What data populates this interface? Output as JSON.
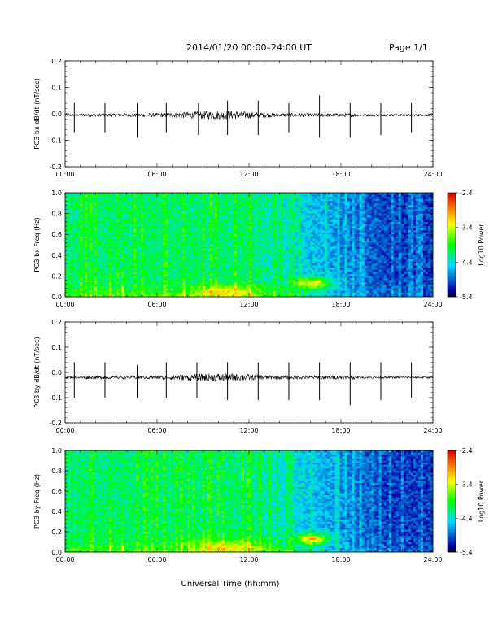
{
  "header": {
    "title": "2014/01/20  00:00–24:00 UT",
    "page": "Page 1/1"
  },
  "footer": {
    "xlabel": "Universal Time (hh:mm)"
  },
  "chart_data": [
    {
      "type": "line",
      "ylabel": "PG3 bx dB/dt (nT/sec)",
      "xlim": [
        0,
        24
      ],
      "ylim": [
        -0.2,
        0.2
      ],
      "yticks": [
        "0.2",
        "0.1",
        "0.0",
        "-0.1",
        "-0.2"
      ],
      "xticks": [
        "00:00",
        "06:00",
        "12:00",
        "18:00",
        "24:00"
      ],
      "baseline": -0.005,
      "spike_hours": [
        0.6,
        2.6,
        4.7,
        6.6,
        8.7,
        10.6,
        12.6,
        14.6,
        16.6,
        18.6,
        20.6,
        22.6
      ],
      "spike_peaks": [
        [
          0.04,
          -0.07
        ],
        [
          0.04,
          -0.07
        ],
        [
          0.04,
          -0.09
        ],
        [
          0.04,
          -0.07
        ],
        [
          0.04,
          -0.08
        ],
        [
          0.05,
          -0.08
        ],
        [
          0.05,
          -0.08
        ],
        [
          0.04,
          -0.07
        ],
        [
          0.07,
          -0.09
        ],
        [
          0.04,
          -0.09
        ],
        [
          0.04,
          -0.08
        ],
        [
          0.04,
          -0.07
        ]
      ]
    },
    {
      "type": "heatmap",
      "ylabel": "PG3 bx Freq (Hz)",
      "xlim": [
        0,
        24
      ],
      "ylim": [
        0.0,
        1.0
      ],
      "yticks": [
        "1.0",
        "0.8",
        "0.6",
        "0.4",
        "0.2",
        "0.0"
      ],
      "xticks": [
        "00:00",
        "06:00",
        "12:00",
        "18:00",
        "24:00"
      ],
      "colorbar": {
        "label": "Log10 Power",
        "ticks": [
          "-2.4",
          "-3.4",
          "-4.4",
          "-5.4"
        ],
        "range": [
          -5.4,
          -2.4
        ]
      },
      "features": "Broadband enhancement 00:00–14:00; strongest emission 0.05–0.2 Hz near 15:00–17:00; low power after 16:00"
    },
    {
      "type": "line",
      "ylabel": "PG3 by dB/dt (nT/sec)",
      "xlim": [
        0,
        24
      ],
      "ylim": [
        -0.2,
        0.2
      ],
      "yticks": [
        "0.2",
        "0.1",
        "0.0",
        "-0.1",
        "-0.2"
      ],
      "xticks": [
        "00:00",
        "06:00",
        "12:00",
        "18:00",
        "24:00"
      ],
      "baseline": -0.02,
      "spike_hours": [
        0.6,
        2.6,
        4.7,
        6.6,
        8.6,
        10.6,
        12.6,
        14.6,
        16.6,
        18.6,
        20.6,
        22.6
      ],
      "spike_peaks": [
        [
          0.04,
          -0.1
        ],
        [
          0.04,
          -0.1
        ],
        [
          0.03,
          -0.1
        ],
        [
          0.04,
          -0.1
        ],
        [
          0.04,
          -0.1
        ],
        [
          0.04,
          -0.11
        ],
        [
          0.04,
          -0.11
        ],
        [
          0.04,
          -0.11
        ],
        [
          0.04,
          -0.11
        ],
        [
          0.04,
          -0.13
        ],
        [
          0.04,
          -0.11
        ],
        [
          0.04,
          -0.1
        ]
      ]
    },
    {
      "type": "heatmap",
      "ylabel": "PG3 by Freq (Hz)",
      "xlim": [
        0,
        24
      ],
      "ylim": [
        0.0,
        1.0
      ],
      "yticks": [
        "1.0",
        "0.8",
        "0.6",
        "0.4",
        "0.2",
        "0.0"
      ],
      "xticks": [
        "00:00",
        "06:00",
        "12:00",
        "18:00",
        "24:00"
      ],
      "colorbar": {
        "label": "Log10 Power",
        "ticks": [
          "-2.4",
          "-3.4",
          "-4.4",
          "-5.4"
        ],
        "range": [
          -5.4,
          -2.4
        ]
      },
      "features": "Broadband enhancement 00:00–14:00; strongest emission 0.05–0.2 Hz near 15:00–17:00; low power after 16:00"
    }
  ]
}
